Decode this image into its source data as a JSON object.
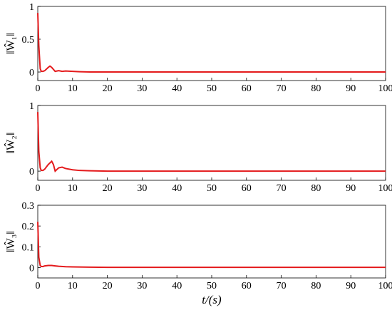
{
  "chart_data": [
    {
      "type": "line",
      "ylabel": "‖Ŵ₁‖",
      "x": [
        0,
        0.3,
        0.7,
        1,
        1.5,
        2,
        3,
        3.5,
        4,
        5,
        6,
        7,
        8,
        10,
        12,
        15,
        20,
        100
      ],
      "series": [
        {
          "color": "#e41a1c",
          "values": [
            0.9,
            0.4,
            0.05,
            0.01,
            0.01,
            0.02,
            0.07,
            0.09,
            0.07,
            0.01,
            0.02,
            0.01,
            0.015,
            0.01,
            0.005,
            0,
            0,
            0
          ]
        }
      ],
      "xlim": [
        0,
        100
      ],
      "xticks": [
        0,
        10,
        20,
        30,
        40,
        50,
        60,
        70,
        80,
        90,
        100
      ],
      "ylim": [
        -0.13,
        1
      ],
      "yticks": [
        0,
        0.5,
        1
      ]
    },
    {
      "type": "line",
      "ylabel": "‖Ŵ₂‖",
      "x": [
        0,
        0.3,
        0.7,
        1,
        1.5,
        2,
        3,
        4,
        4.5,
        5,
        6,
        7,
        8,
        10,
        12,
        15,
        20,
        100
      ],
      "series": [
        {
          "color": "#e41a1c",
          "values": [
            0.9,
            0.3,
            0.05,
            0.01,
            0.01,
            0.03,
            0.1,
            0.15,
            0.1,
            0,
            0.05,
            0.06,
            0.04,
            0.02,
            0.01,
            0.005,
            0,
            0
          ]
        }
      ],
      "xlim": [
        0,
        100
      ],
      "xticks": [
        0,
        10,
        20,
        30,
        40,
        50,
        60,
        70,
        80,
        90,
        100
      ],
      "ylim": [
        -0.14,
        1
      ],
      "yticks": [
        0,
        1
      ]
    },
    {
      "type": "line",
      "ylabel": "‖Ŵ₃‖",
      "xlabel": "t/(s)",
      "x": [
        0,
        0.3,
        0.7,
        1,
        1.5,
        2,
        3,
        4,
        5,
        6,
        8,
        10,
        15,
        20,
        100
      ],
      "series": [
        {
          "color": "#e41a1c",
          "values": [
            0.22,
            0.05,
            0.01,
            0.005,
            0.005,
            0.008,
            0.01,
            0.01,
            0.008,
            0.006,
            0.004,
            0.003,
            0.002,
            0.001,
            0.001
          ]
        }
      ],
      "xlim": [
        0,
        100
      ],
      "xticks": [
        0,
        10,
        20,
        30,
        40,
        50,
        60,
        70,
        80,
        90,
        100
      ],
      "ylim": [
        -0.05,
        0.3
      ],
      "yticks": [
        0,
        0.1,
        0.2,
        0.3
      ]
    }
  ]
}
